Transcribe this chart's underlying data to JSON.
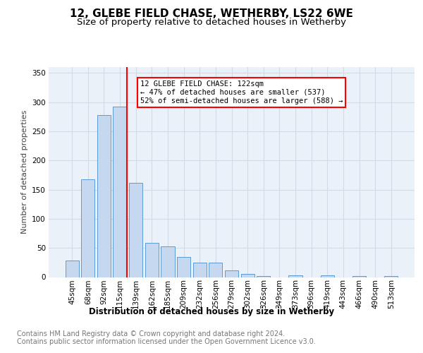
{
  "title1": "12, GLEBE FIELD CHASE, WETHERBY, LS22 6WE",
  "title2": "Size of property relative to detached houses in Wetherby",
  "xlabel": "Distribution of detached houses by size in Wetherby",
  "ylabel": "Number of detached properties",
  "categories": [
    "45sqm",
    "68sqm",
    "92sqm",
    "115sqm",
    "139sqm",
    "162sqm",
    "185sqm",
    "209sqm",
    "232sqm",
    "256sqm",
    "279sqm",
    "302sqm",
    "326sqm",
    "349sqm",
    "373sqm",
    "396sqm",
    "419sqm",
    "443sqm",
    "466sqm",
    "490sqm",
    "513sqm"
  ],
  "values": [
    29,
    168,
    278,
    292,
    162,
    59,
    53,
    34,
    25,
    25,
    11,
    5,
    2,
    0,
    3,
    0,
    3,
    0,
    2,
    0,
    2
  ],
  "bar_color": "#c5d8f0",
  "bar_edge_color": "#5b9bd5",
  "annotation_text": "12 GLEBE FIELD CHASE: 122sqm\n← 47% of detached houses are smaller (537)\n52% of semi-detached houses are larger (588) →",
  "red_line_color": "red",
  "ylim": [
    0,
    360
  ],
  "yticks": [
    0,
    50,
    100,
    150,
    200,
    250,
    300,
    350
  ],
  "grid_color": "#d0dce8",
  "bg_color": "#eaf1f8",
  "footer_text": "Contains HM Land Registry data © Crown copyright and database right 2024.\nContains public sector information licensed under the Open Government Licence v3.0.",
  "title1_fontsize": 11,
  "title2_fontsize": 9.5,
  "xlabel_fontsize": 8.5,
  "ylabel_fontsize": 8,
  "tick_fontsize": 7.5,
  "footer_fontsize": 7,
  "annot_fontsize": 7.5
}
